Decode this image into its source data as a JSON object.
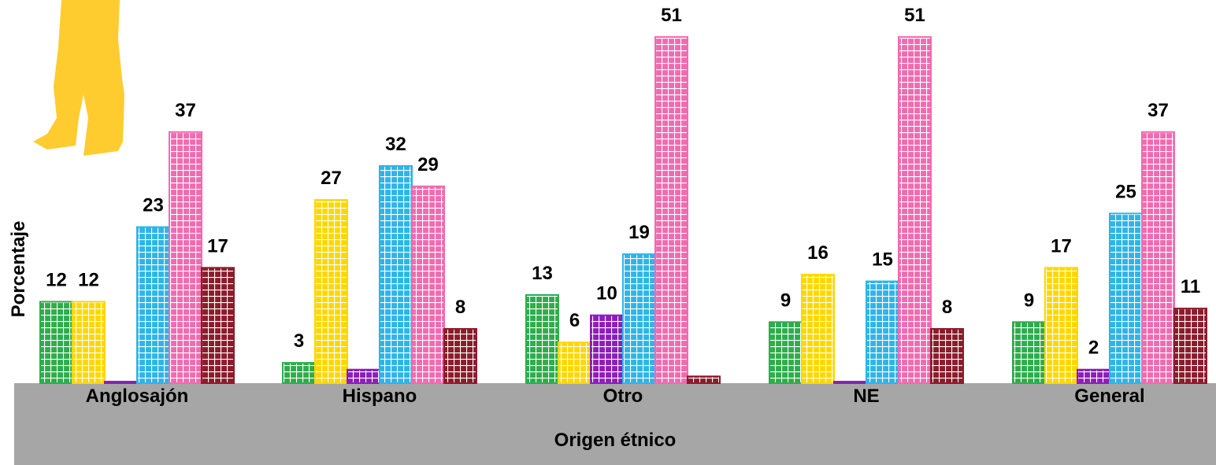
{
  "chart_data": {
    "type": "bar",
    "title": "",
    "xlabel": "Origen étnico",
    "ylabel": "Porcentaje",
    "ylim": [
      0,
      53
    ],
    "legend": "none",
    "grid": false,
    "categories": [
      "Anglosajón",
      "Hispano",
      "Otro",
      "NE",
      "General"
    ],
    "series": [
      {
        "color": "#2EAD4B",
        "values": [
          12,
          3,
          13,
          9,
          9
        ]
      },
      {
        "color": "#FFD700",
        "values": [
          12,
          27,
          6,
          16,
          17
        ]
      },
      {
        "color": "#8B1FB8",
        "values": [
          0,
          2,
          10,
          0,
          2
        ]
      },
      {
        "color": "#2FB4E8",
        "values": [
          23,
          32,
          19,
          15,
          25
        ]
      },
      {
        "color": "#F06BB0",
        "values": [
          37,
          29,
          51,
          51,
          37
        ]
      },
      {
        "color": "#8B1C2B",
        "values": [
          17,
          8,
          1,
          8,
          11
        ]
      }
    ],
    "data_labels": [
      [
        "12",
        "12",
        "",
        "23",
        "37",
        "17"
      ],
      [
        "3",
        "27",
        "",
        "32",
        "29",
        "8"
      ],
      [
        "13",
        "6",
        "10",
        "19",
        "51",
        ""
      ],
      [
        "9",
        "16",
        "",
        "15",
        "51",
        "8"
      ],
      [
        "9",
        "17",
        "2",
        "25",
        "37",
        "11"
      ]
    ]
  }
}
